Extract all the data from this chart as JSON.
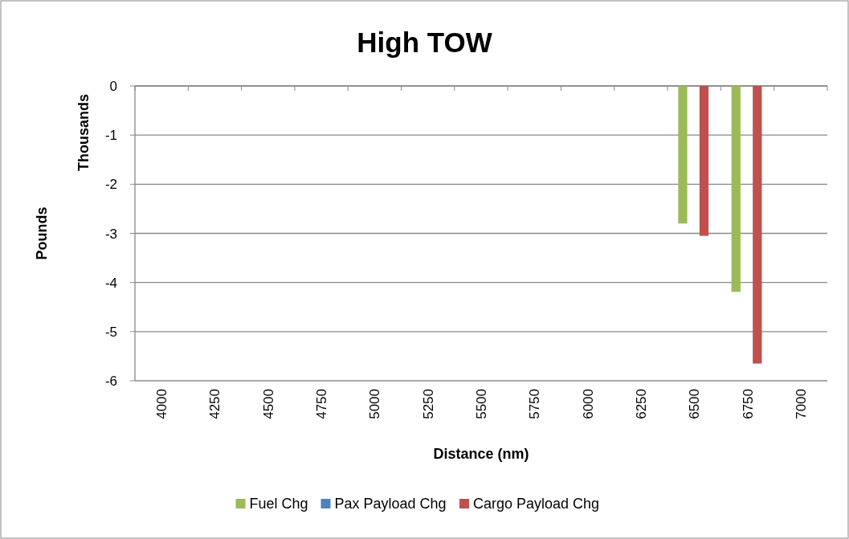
{
  "chart_data": {
    "type": "bar",
    "title": "High TOW",
    "xlabel": "Distance (nm)",
    "ylabel": "Pounds",
    "annotations": [
      "Thousands"
    ],
    "categories": [
      "4000",
      "4250",
      "4500",
      "4750",
      "5000",
      "5250",
      "5500",
      "5750",
      "6000",
      "6250",
      "6500",
      "6750",
      "7000"
    ],
    "series": [
      {
        "name": "Fuel Chg",
        "color": "#9bbb59",
        "values": [
          null,
          null,
          null,
          null,
          null,
          null,
          null,
          null,
          null,
          null,
          -2.8,
          -4.19,
          null
        ]
      },
      {
        "name": "Pax Payload Chg",
        "color": "#4f81bd",
        "values": [
          null,
          null,
          null,
          null,
          null,
          null,
          null,
          null,
          null,
          null,
          0,
          0,
          null
        ]
      },
      {
        "name": "Cargo Payload Chg",
        "color": "#c0504d",
        "values": [
          null,
          null,
          null,
          null,
          null,
          null,
          null,
          null,
          null,
          null,
          -3.05,
          -5.65,
          null
        ]
      }
    ],
    "ylim": [
      -6,
      0
    ],
    "yticks": [
      -6,
      -5,
      -4,
      -3,
      -2,
      -1,
      0
    ],
    "grid": "y",
    "legend": "bottom"
  }
}
